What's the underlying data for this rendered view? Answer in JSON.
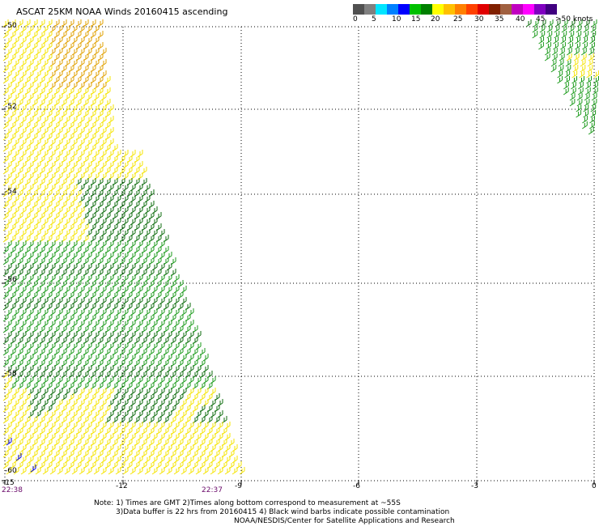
{
  "title": "ASCAT 25KM NOAA Winds 20160415 ascending",
  "legend": {
    "colors": [
      "#505050",
      "#808080",
      "#00e5ff",
      "#0080ff",
      "#0000ff",
      "#00c000",
      "#008000",
      "#ffff00",
      "#ffc000",
      "#ff8000",
      "#ff4000",
      "#e00000",
      "#802000",
      "#a06040",
      "#c000c0",
      "#ff00ff",
      "#8000c0",
      "#400080"
    ],
    "labels": [
      "0",
      "5",
      "10",
      "15",
      "20",
      "25",
      "30",
      "35",
      "40",
      "45",
      ">50 knots"
    ]
  },
  "axes": {
    "x_ticks": [
      "-15",
      "-12",
      "-9",
      "-6",
      "-3",
      "0"
    ],
    "y_ticks": [
      "-50",
      "-52",
      "-54",
      "-56",
      "-58",
      "-60"
    ],
    "xlim": [
      -15,
      0
    ],
    "ylim": [
      -60,
      -50
    ]
  },
  "times": {
    "left": "22:38",
    "right": "22:37"
  },
  "notes": [
    "Note: 1) Times are GMT 2)Times along bottom correspond to measurement at ~55S",
    "3)Data buffer is 22 hrs from 20160415 4) Black wind barbs indicate possible contamination",
    "NOAA/NESDIS/Center for Satellite Applications and Research"
  ],
  "colors": {
    "yellow": "#f5e400",
    "orange": "#e0a000",
    "green": "#1a9a1a",
    "darkgreen": "#0b6b0b",
    "blue": "#0000e0"
  }
}
